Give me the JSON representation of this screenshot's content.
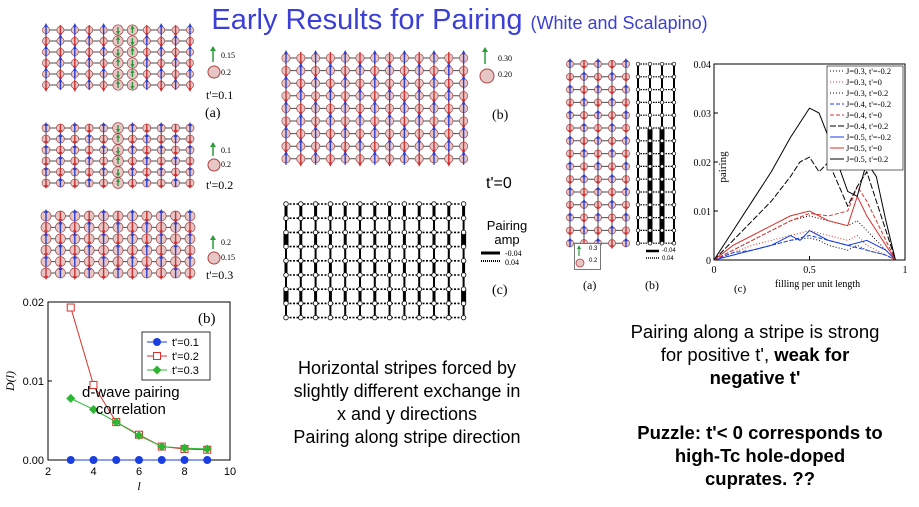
{
  "slide": {
    "title": "Early Results for Pairing",
    "title_note": "(White and Scalapino)"
  },
  "left_panels": {
    "panel_a_label": "(a)",
    "rows": [
      {
        "tprime": "t'=0.1",
        "legend": [
          "0.15",
          "0.2"
        ]
      },
      {
        "tprime": "t'=0.2",
        "legend": [
          "0.1",
          "0.2"
        ]
      },
      {
        "tprime": "t'=0.3",
        "legend": [
          "0.2",
          "0.15"
        ]
      }
    ]
  },
  "dplot": {
    "panel_label": "(b)",
    "annotation_line1": "d-wave pairing",
    "annotation_line2": "correlation"
  },
  "middle": {
    "legend": [
      "0.30",
      "0.20"
    ],
    "panel_b_label": "(b)",
    "tprime": "t'=0",
    "pairing_title_1": "Pairing",
    "pairing_title_2": "amp",
    "pairing_vals": [
      "-0.04",
      "0.04"
    ],
    "panel_c_label": "(c)",
    "caption": [
      "Horizontal stripes forced by",
      "slightly different exchange in",
      "x and y directions",
      "Pairing along stripe direction"
    ]
  },
  "right": {
    "legend_a": [
      "0.3",
      "0.2"
    ],
    "legend_b": [
      "-0.04",
      "0.04"
    ],
    "panel_a_label": "(a)",
    "panel_b_label": "(b)",
    "panel_c_label": "(c)",
    "text_line1": "Pairing along a stripe is strong",
    "text_line2a": "for positive t', ",
    "text_line2b": "weak for",
    "text_line3": "negative t'",
    "puzzle": [
      "Puzzle:  t'< 0 corresponds to",
      "high-Tc hole-doped",
      "cuprates.      ??"
    ]
  },
  "chart_data": [
    {
      "type": "line",
      "xlabel": "l",
      "ylabel": "D(l)",
      "xlim": [
        2,
        10
      ],
      "ylim": [
        0,
        0.02
      ],
      "xticks": [
        "2",
        "4",
        "6",
        "8",
        "10"
      ],
      "yticks": [
        "0.00",
        "0.01",
        "0.02"
      ],
      "series": [
        {
          "name": "t'=0.1",
          "color": "#1a3fe0",
          "marker": "circle-filled",
          "x": [
            3,
            4,
            5,
            6,
            7,
            8,
            9
          ],
          "y": [
            0,
            0,
            0,
            0,
            0,
            0,
            0
          ]
        },
        {
          "name": "t'=0.2",
          "color": "#d9302c",
          "marker": "square-open",
          "x": [
            3,
            4,
            5,
            6,
            7,
            8,
            9
          ],
          "y": [
            0.0193,
            0.0095,
            0.0048,
            0.0032,
            0.0017,
            0.0014,
            0.0013
          ]
        },
        {
          "name": "t'=0.3",
          "color": "#2fb534",
          "marker": "diamond-filled",
          "x": [
            3,
            4,
            5,
            6,
            7,
            8,
            9
          ],
          "y": [
            0.0078,
            0.0064,
            0.0048,
            0.0031,
            0.0017,
            0.0015,
            0.0014
          ]
        }
      ]
    },
    {
      "type": "line",
      "xlabel": "filling per unit length",
      "ylabel": "pairing",
      "xlim": [
        0,
        1
      ],
      "ylim": [
        0,
        0.04
      ],
      "xticks": [
        "0",
        "0.5",
        "1"
      ],
      "yticks": [
        "0",
        "0.01",
        "0.02",
        "0.03",
        "0.04"
      ],
      "series": [
        {
          "name": "J=0.3, t'=-0.2",
          "color": "#000000",
          "dash": "1,2",
          "x": [
            0,
            0.1,
            0.2,
            0.3,
            0.4,
            0.5,
            0.55,
            0.6,
            0.7,
            0.75,
            0.8,
            0.9,
            0.95
          ],
          "y": [
            0,
            0.001,
            0.002,
            0.003,
            0.004,
            0.0045,
            0.004,
            0.003,
            0.002,
            0.003,
            0.002,
            0.001,
            0
          ]
        },
        {
          "name": "J=0.3, t'=0",
          "color": "#d9302c",
          "dash": "1,2",
          "x": [
            0,
            0.1,
            0.2,
            0.3,
            0.4,
            0.5,
            0.6,
            0.7,
            0.75,
            0.8,
            0.9,
            0.95
          ],
          "y": [
            0,
            0.0015,
            0.003,
            0.004,
            0.005,
            0.006,
            0.005,
            0.004,
            0.005,
            0.003,
            0.001,
            0
          ]
        },
        {
          "name": "J=0.3, t'=0.2",
          "color": "#000000",
          "dash": "1,2",
          "x": [
            0,
            0.1,
            0.2,
            0.3,
            0.4,
            0.5,
            0.6,
            0.7,
            0.75,
            0.8,
            0.9,
            0.95
          ],
          "y": [
            0,
            0.002,
            0.004,
            0.006,
            0.008,
            0.009,
            0.008,
            0.007,
            0.008,
            0.006,
            0.002,
            0
          ]
        },
        {
          "name": "J=0.4, t'=-0.2",
          "color": "#1a3fe0",
          "dash": "4,2",
          "x": [
            0,
            0.1,
            0.2,
            0.3,
            0.4,
            0.5,
            0.6,
            0.7,
            0.8,
            0.9,
            0.95
          ],
          "y": [
            0,
            0.0015,
            0.002,
            0.003,
            0.004,
            0.005,
            0.004,
            0.003,
            0.002,
            0.001,
            0
          ]
        },
        {
          "name": "J=0.4, t'=0",
          "color": "#d9302c",
          "dash": "4,2",
          "x": [
            0,
            0.1,
            0.2,
            0.3,
            0.4,
            0.5,
            0.6,
            0.7,
            0.75,
            0.8,
            0.9,
            0.95
          ],
          "y": [
            0,
            0.002,
            0.004,
            0.006,
            0.008,
            0.0095,
            0.009,
            0.01,
            0.015,
            0.012,
            0.004,
            0
          ]
        },
        {
          "name": "J=0.4, t'=0.2",
          "color": "#000000",
          "dash": "6,2",
          "x": [
            0,
            0.1,
            0.2,
            0.3,
            0.4,
            0.45,
            0.5,
            0.55,
            0.6,
            0.7,
            0.75,
            0.8,
            0.9,
            0.95
          ],
          "y": [
            0,
            0.004,
            0.008,
            0.012,
            0.017,
            0.02,
            0.021,
            0.018,
            0.02,
            0.011,
            0.015,
            0.018,
            0.006,
            0
          ]
        },
        {
          "name": "J=0.5, t'=-0.2",
          "color": "#1a3fe0",
          "dash": "",
          "x": [
            0,
            0.1,
            0.2,
            0.3,
            0.4,
            0.45,
            0.5,
            0.55,
            0.6,
            0.7,
            0.8,
            0.9,
            0.95
          ],
          "y": [
            0,
            0.001,
            0.002,
            0.003,
            0.005,
            0.004,
            0.006,
            0.005,
            0.004,
            0.003,
            0.004,
            0.002,
            0
          ]
        },
        {
          "name": "J=0.5, t'=0",
          "color": "#d9302c",
          "dash": "",
          "x": [
            0,
            0.1,
            0.2,
            0.3,
            0.4,
            0.5,
            0.55,
            0.6,
            0.7,
            0.75,
            0.8,
            0.9,
            0.95
          ],
          "y": [
            0,
            0.003,
            0.005,
            0.007,
            0.009,
            0.01,
            0.009,
            0.008,
            0.007,
            0.013,
            0.009,
            0.003,
            0
          ]
        },
        {
          "name": "J=0.5, t'=0.2",
          "color": "#000000",
          "dash": "",
          "x": [
            0,
            0.1,
            0.2,
            0.3,
            0.4,
            0.5,
            0.55,
            0.6,
            0.7,
            0.75,
            0.8,
            0.85,
            0.9,
            0.95
          ],
          "y": [
            0,
            0.006,
            0.012,
            0.018,
            0.025,
            0.031,
            0.03,
            0.025,
            0.014,
            0.013,
            0.02,
            0.017,
            0.008,
            0
          ]
        }
      ]
    }
  ]
}
